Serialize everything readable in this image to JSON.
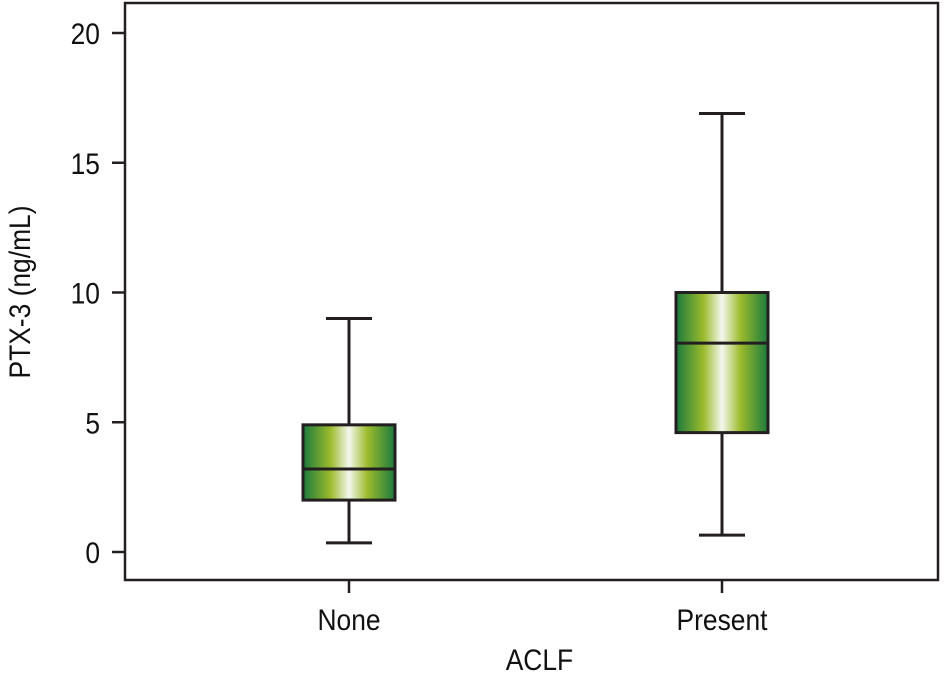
{
  "chart_data": {
    "type": "box",
    "title": "",
    "xlabel": "ACLF",
    "ylabel": "PTX-3 (ng/mL)",
    "ylim": [
      0,
      20
    ],
    "yticks": [
      0,
      5,
      10,
      15,
      20
    ],
    "categories": [
      "None",
      "Present"
    ],
    "boxes": [
      {
        "category": "None",
        "whisker_low": 0.35,
        "q1": 2.0,
        "median": 3.2,
        "q3": 4.9,
        "whisker_high": 9.0
      },
      {
        "category": "Present",
        "whisker_low": 0.65,
        "q1": 4.6,
        "median": 8.05,
        "q3": 10.0,
        "whisker_high": 16.9
      }
    ],
    "grid": false,
    "colors": {
      "box_edge": "#1b7a3e",
      "box_mid": "#9cbb2c",
      "box_center": "#f4f7ee",
      "line": "#231f20"
    }
  }
}
